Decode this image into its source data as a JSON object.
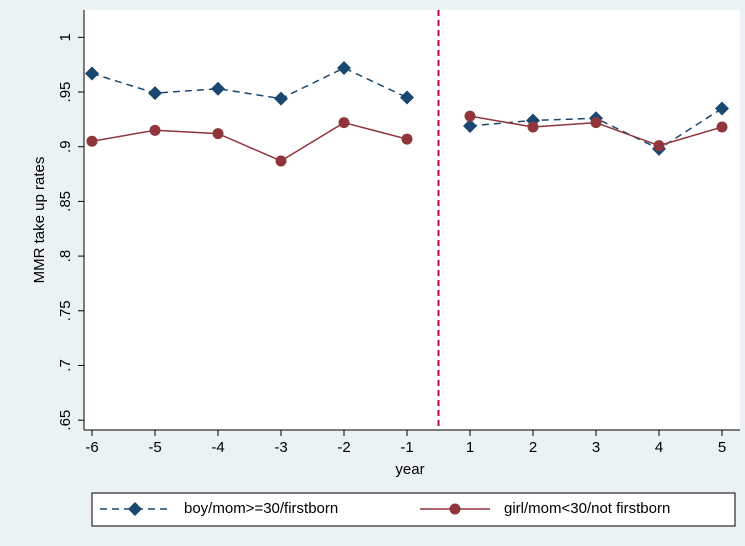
{
  "chart_data": {
    "type": "line",
    "categories": [
      "-6",
      "-5",
      "-4",
      "-3",
      "-2",
      "-1",
      "1",
      "2",
      "3",
      "4",
      "5"
    ],
    "x_label": "year",
    "y_label": "MMR take up rates",
    "series": [
      {
        "name": "boy/mom>=30/firstborn",
        "color": "#1a476f",
        "marker": "diamond",
        "dash": "dashed",
        "values": [
          0.967,
          0.949,
          0.953,
          0.944,
          0.972,
          0.945,
          0.919,
          0.924,
          0.926,
          0.898,
          0.935
        ]
      },
      {
        "name": "girl/mom<30/not firstborn",
        "color": "#90353b",
        "marker": "circle",
        "dash": "solid",
        "values": [
          0.905,
          0.915,
          0.912,
          0.887,
          0.922,
          0.907,
          0.928,
          0.918,
          0.922,
          0.901,
          0.918
        ]
      }
    ],
    "reference_line": {
      "after_category": "-1",
      "color": "#c10534",
      "style": "dashed"
    },
    "ylim": [
      0.641,
      1.025
    ],
    "yticks": [
      {
        "value": 0.65,
        "label": ".65"
      },
      {
        "value": 0.7,
        "label": ".7"
      },
      {
        "value": 0.75,
        "label": ".75"
      },
      {
        "value": 0.8,
        "label": ".8"
      },
      {
        "value": 0.85,
        "label": ".85"
      },
      {
        "value": 0.9,
        "label": ".9"
      },
      {
        "value": 0.95,
        "label": ".95"
      },
      1
    ],
    "legend": "bottom"
  }
}
